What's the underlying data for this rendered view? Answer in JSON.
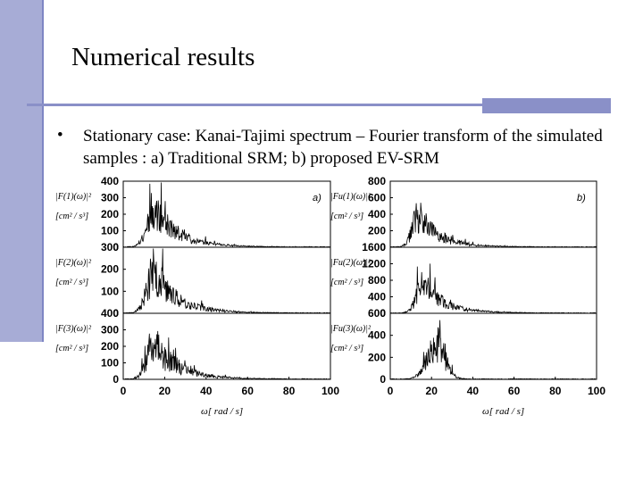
{
  "slide": {
    "title": "Numerical results",
    "bullet_text": "Stationary case: Kanai-Tajimi spectrum – Fourier transform of the simulated samples : a) Traditional SRM; b) proposed EV-SRM",
    "bullet_symbol": "•",
    "accent_color": "#a7acd6"
  },
  "chart_data": [
    {
      "type": "line",
      "group": "a",
      "panel_label": "a)",
      "xlabel": "ω[ rad / s]",
      "x_ticks": [
        "0",
        "20",
        "40",
        "60",
        "80",
        "100"
      ],
      "xlim": [
        0,
        100
      ],
      "rows": [
        {
          "ylabel": "|F(1)(ω)|² [cm² / s³]",
          "y_ticks": [
            "0",
            "100",
            "200",
            "300",
            "400"
          ],
          "ylim": [
            0,
            400
          ],
          "peak_center": 15,
          "peak_spread": 9,
          "level": 230,
          "noise": 0.55,
          "seed": 11
        },
        {
          "ylabel": "|F(2)(ω)|² [cm² / s³]",
          "y_ticks": [
            "0",
            "100",
            "200",
            "300"
          ],
          "ylim": [
            0,
            300
          ],
          "peak_center": 15,
          "peak_spread": 9,
          "level": 180,
          "noise": 0.6,
          "seed": 23
        },
        {
          "ylabel": "|F(3)(ω)|² [cm² / s³]",
          "y_ticks": [
            "0",
            "100",
            "200",
            "300",
            "400"
          ],
          "ylim": [
            0,
            400
          ],
          "peak_center": 15,
          "peak_spread": 9,
          "level": 210,
          "noise": 0.65,
          "seed": 37
        }
      ]
    },
    {
      "type": "line",
      "group": "b",
      "panel_label": "b)",
      "xlabel": "ω[ rad / s]",
      "x_ticks": [
        "0",
        "20",
        "40",
        "60",
        "80",
        "100"
      ],
      "xlim": [
        0,
        100
      ],
      "rows": [
        {
          "ylabel": "|Fu(1)(ω)|² [cm² / s³]",
          "y_ticks": [
            "0",
            "200",
            "400",
            "600",
            "800"
          ],
          "ylim": [
            0,
            800
          ],
          "peak_center": 14,
          "peak_spread": 8,
          "level": 380,
          "noise": 0.6,
          "seed": 51
        },
        {
          "ylabel": "|Fu(2)(ω)|² [cm² / s³]",
          "y_ticks": [
            "0",
            "400",
            "800",
            "1200",
            "1600"
          ],
          "ylim": [
            0,
            1600
          ],
          "peak_center": 16,
          "peak_spread": 8,
          "level": 720,
          "noise": 0.55,
          "seed": 67
        },
        {
          "ylabel": "|Fu(3)(ω)|² [cm² / s³]",
          "y_ticks": [
            "0",
            "200",
            "400",
            "600"
          ],
          "ylim": [
            0,
            600
          ],
          "peak_center": 22,
          "peak_spread": 6,
          "level": 330,
          "noise": 0.55,
          "seed": 83
        }
      ]
    }
  ]
}
